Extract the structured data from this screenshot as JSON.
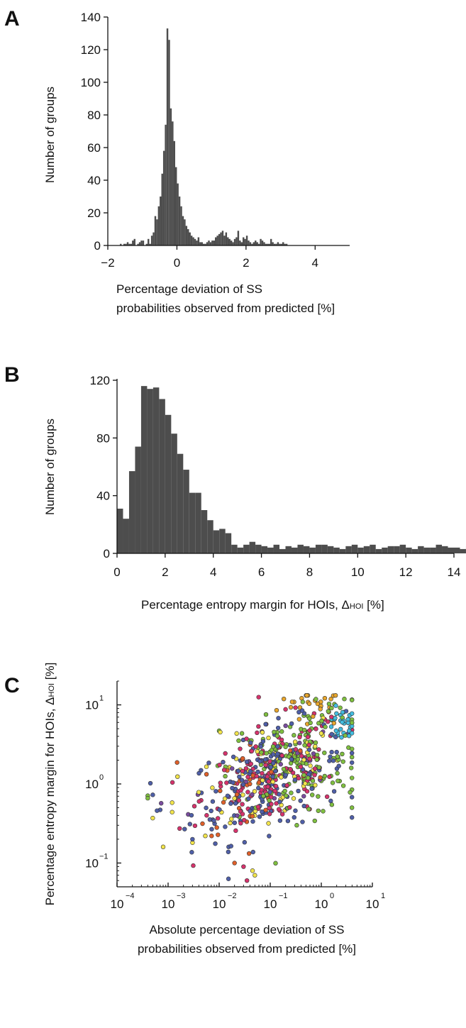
{
  "chart_data": [
    {
      "panel": "A",
      "type": "bar",
      "ylabel": "Number of groups",
      "xlabel": [
        "Percentage deviation of SS",
        "probabilities observed from predicted  [%]"
      ],
      "xlim": [
        -2,
        5
      ],
      "ylim": [
        0,
        140
      ],
      "xticks": [
        -2,
        0,
        2,
        4
      ],
      "xtick_labels": [
        "−2",
        "0",
        "2",
        "4"
      ],
      "yticks": [
        0,
        20,
        40,
        60,
        80,
        100,
        120,
        140
      ],
      "bin_start": -1.65,
      "bin_width": 0.05,
      "values": [
        1,
        0,
        1,
        1,
        2,
        1,
        1,
        3,
        4,
        0,
        1,
        2,
        3,
        3,
        0,
        1,
        4,
        1,
        6,
        8,
        18,
        16,
        24,
        30,
        44,
        58,
        74,
        133,
        126,
        84,
        76,
        64,
        48,
        38,
        30,
        24,
        18,
        16,
        12,
        10,
        8,
        6,
        5,
        4,
        3,
        5,
        2,
        2,
        1,
        1,
        2,
        3,
        2,
        3,
        3,
        5,
        6,
        7,
        8,
        9,
        6,
        8,
        5,
        4,
        3,
        2,
        4,
        5,
        9,
        3,
        2,
        5,
        4,
        6,
        3,
        2,
        1,
        2,
        3,
        2,
        1,
        4,
        3,
        2,
        1,
        1,
        1,
        4,
        2,
        1,
        1,
        2,
        1,
        1,
        2,
        1,
        1
      ],
      "color": "#4d4d4d"
    },
    {
      "panel": "B",
      "type": "bar",
      "ylabel": "Number of groups",
      "xlabel": "Percentage entropy margin for HOIs, ΔHOI [%]",
      "xlabel_parts": [
        "Percentage entropy margin for HOIs, ",
        "Δ",
        "HOI",
        " [%]"
      ],
      "xlim": [
        0,
        14
      ],
      "ylim": [
        0,
        120
      ],
      "xticks": [
        0,
        2,
        4,
        6,
        8,
        10,
        12,
        14
      ],
      "xtick_labels": [
        "0",
        "2",
        "4",
        "6",
        "8",
        "10",
        "12",
        "14"
      ],
      "yticks": [
        0,
        40,
        80,
        120
      ],
      "bin_start": 0,
      "bin_width": 0.25,
      "values": [
        31,
        24,
        57,
        74,
        116,
        114,
        115,
        107,
        96,
        83,
        69,
        58,
        42,
        42,
        30,
        23,
        16,
        17,
        14,
        6,
        4,
        6,
        8,
        6,
        5,
        4,
        6,
        3,
        5,
        4,
        6,
        5,
        4,
        6,
        6,
        5,
        4,
        3,
        5,
        6,
        4,
        5,
        6,
        3,
        4,
        5,
        5,
        6,
        4,
        3,
        5,
        4,
        4,
        6,
        5,
        4,
        4,
        3,
        5,
        3,
        5,
        5,
        4,
        4,
        3,
        4,
        4,
        4,
        2,
        3,
        5,
        4,
        4,
        4,
        3,
        3,
        3,
        4,
        3,
        3,
        3,
        3,
        2,
        3,
        2,
        2,
        2,
        1,
        1,
        1,
        1,
        1,
        1,
        1,
        1,
        1,
        1,
        1
      ],
      "color": "#4d4d4d"
    },
    {
      "panel": "C",
      "type": "scatter",
      "xscale": "log",
      "yscale": "log",
      "xlim": [
        0.0001,
        10
      ],
      "ylim": [
        0.05,
        20
      ],
      "xtick_bases": [
        "10",
        "10",
        "10",
        "10",
        "10",
        "10"
      ],
      "xtick_exps": [
        "−4",
        "−3",
        "−2",
        "−1",
        "0",
        "1"
      ],
      "ytick_bases": [
        "10",
        "10",
        "10"
      ],
      "ytick_exps": [
        "−1",
        "0",
        "1"
      ],
      "ylabel_parts": [
        "Percentage entropy margin for HOIs, ",
        "Δ",
        "HOI",
        "  [%]"
      ],
      "xlabel": [
        "Absolute percentage deviation of  SS",
        "probabilities observed from predicted [%]"
      ],
      "palette": [
        "#e8a62c",
        "#7fbf3f",
        "#43bde0",
        "#f2e44b",
        "#4f5fa8",
        "#d6336c",
        "#e0602a",
        "#7a4c9e"
      ],
      "series": [
        {
          "cluster": 0,
          "center": [
            0.7,
            10.0
          ],
          "spread": [
            0.35,
            0.13
          ],
          "count": 28
        },
        {
          "cluster": 1,
          "center": [
            1.8,
            7.5
          ],
          "spread": [
            0.3,
            0.13
          ],
          "count": 26
        },
        {
          "cluster": 2,
          "center": [
            2.5,
            5.5
          ],
          "spread": [
            0.18,
            0.1
          ],
          "count": 30
        },
        {
          "cluster": 3,
          "center": [
            0.08,
            1.2
          ],
          "spread": [
            0.75,
            0.35
          ],
          "count": 70
        },
        {
          "cluster": 4,
          "center": [
            0.09,
            1.1
          ],
          "spread": [
            0.75,
            0.32
          ],
          "count": 180
        },
        {
          "cluster": 5,
          "center": [
            0.12,
            1.3
          ],
          "spread": [
            0.7,
            0.32
          ],
          "count": 160
        },
        {
          "cluster": 1,
          "center": [
            0.3,
            1.6
          ],
          "spread": [
            0.65,
            0.3
          ],
          "count": 140
        },
        {
          "cluster": 6,
          "center": [
            0.05,
            1.0
          ],
          "spread": [
            0.6,
            0.3
          ],
          "count": 40
        },
        {
          "cluster": 7,
          "center": [
            0.08,
            1.3
          ],
          "spread": [
            0.7,
            0.3
          ],
          "count": 30
        }
      ],
      "points": [
        [
          0.0004,
          0.66
        ],
        [
          0.0004,
          0.71
        ],
        [
          0.00045,
          1.02
        ],
        [
          0.0005,
          0.37
        ],
        [
          0.0007,
          0.47
        ],
        [
          0.0008,
          0.16
        ],
        [
          0.0012,
          0.44
        ],
        [
          0.0012,
          0.58
        ],
        [
          0.0015,
          1.87
        ],
        [
          0.003,
          0.2
        ],
        [
          0.01,
          4.7
        ],
        [
          0.02,
          0.1
        ],
        [
          0.035,
          0.06
        ],
        [
          0.045,
          0.08
        ],
        [
          0.05,
          0.07
        ],
        [
          0.03,
          0.09
        ]
      ],
      "point_colors": [
        1,
        1,
        4,
        3,
        4,
        3,
        3,
        3,
        6,
        4,
        1,
        6,
        5,
        3,
        3,
        5
      ],
      "marker_edge": "#333333"
    }
  ]
}
